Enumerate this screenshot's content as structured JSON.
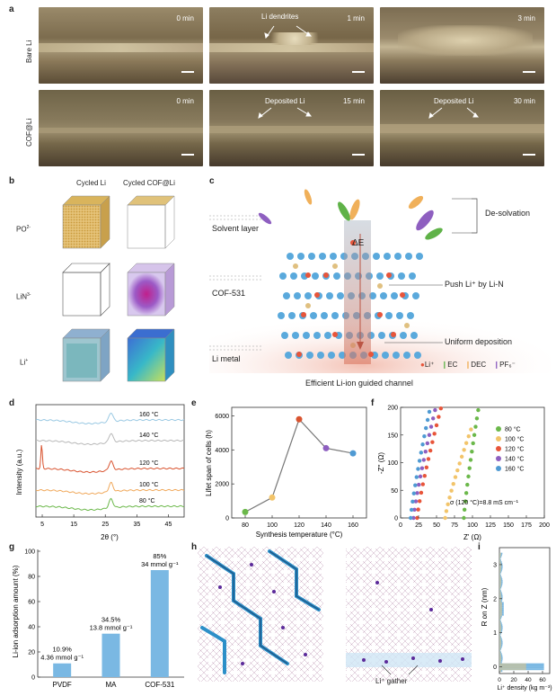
{
  "panels": {
    "a": "a",
    "b": "b",
    "c": "c",
    "d": "d",
    "e": "e",
    "f": "f",
    "g": "g",
    "h": "h",
    "i": "i"
  },
  "a": {
    "row_labels": [
      "Bare Li",
      "COF@Li"
    ],
    "times_top": [
      "0 min",
      "1 min",
      "3 min"
    ],
    "times_bottom": [
      "0 min",
      "15 min",
      "30 min"
    ],
    "annot_top_mid": "Li dendrites",
    "annot_bottom_mid": "Deposited Li",
    "annot_bottom_right": "Deposited Li"
  },
  "b": {
    "columns": [
      "Cycled Li",
      "Cycled COF@Li"
    ],
    "rows": [
      "PO",
      "LiN",
      "Li"
    ],
    "row_sups": [
      "2-",
      "3-",
      "+"
    ]
  },
  "c": {
    "labels": {
      "desolvation": "De-solvation",
      "solvent_layer": "Solvent layer",
      "delta_e": "ΔE",
      "push": "Push Li⁺ by Li-N",
      "cof": "COF-531",
      "uniform": "Uniform deposition",
      "li_metal": "Li metal",
      "caption": "Efficient Li-ion guided channel"
    },
    "legend": [
      "Li⁺",
      "EC",
      "DEC",
      "PF₆⁻"
    ],
    "legend_colors": [
      "#e8553a",
      "#5fb248",
      "#f0b05a",
      "#8e5fc0"
    ]
  },
  "chart_data": [
    {
      "id": "d",
      "type": "line",
      "xlabel": "2θ (°)",
      "ylabel": "Intensity (a.u.)",
      "xlim": [
        3,
        50
      ],
      "xticks": [
        5,
        15,
        25,
        35,
        45
      ],
      "series": [
        {
          "name": "160 °C",
          "color": "#9ac9e3"
        },
        {
          "name": "140 °C",
          "color": "#b8b8b8"
        },
        {
          "name": "120 °C",
          "color": "#d9532f"
        },
        {
          "name": "100 °C",
          "color": "#f0a85a"
        },
        {
          "name": "80 °C",
          "color": "#6bb84a"
        }
      ]
    },
    {
      "id": "e",
      "type": "line",
      "xlabel": "Synthesis temperature (°C)",
      "ylabel": "Lifet span of cells (h)",
      "x": [
        80,
        100,
        120,
        140,
        160
      ],
      "y": [
        350,
        1200,
        5800,
        4100,
        3800
      ],
      "xlim": [
        70,
        170
      ],
      "ylim": [
        0,
        6500
      ],
      "xticks": [
        80,
        100,
        120,
        140,
        160
      ],
      "yticks": [
        0,
        2000,
        4000,
        6000
      ],
      "point_colors": [
        "#6bb84a",
        "#f2c46a",
        "#d9532f",
        "#8e5fc0",
        "#4f9ad3"
      ]
    },
    {
      "id": "f",
      "type": "scatter",
      "xlabel": "Z' (Ω)",
      "ylabel": "-Z'' (Ω)",
      "xlim": [
        0,
        200
      ],
      "ylim": [
        0,
        200
      ],
      "xticks": [
        0,
        25,
        50,
        75,
        100,
        125,
        150,
        175,
        200
      ],
      "yticks": [
        0,
        50,
        100,
        150,
        200
      ],
      "annotation": "σ (120 °C)=8.8 mS cm⁻¹",
      "series": [
        {
          "name": "80 °C",
          "color": "#6bb84a",
          "x0": 88,
          "x1": 108,
          "ymax": 195
        },
        {
          "name": "100 °C",
          "color": "#f2c46a",
          "x0": 62,
          "x1": 98,
          "ymax": 160
        },
        {
          "name": "120 °C",
          "color": "#e8553a",
          "x0": 23,
          "x1": 56,
          "ymax": 198
        },
        {
          "name": "140 °C",
          "color": "#8e5fc0",
          "x0": 18,
          "x1": 48,
          "ymax": 195
        },
        {
          "name": "160 °C",
          "color": "#4f9ad3",
          "x0": 14,
          "x1": 40,
          "ymax": 192
        }
      ]
    },
    {
      "id": "g",
      "type": "bar",
      "ylabel": "Li-ion adsorption amount (%)",
      "categories": [
        "PVDF",
        "MA",
        "COF-531"
      ],
      "values": [
        10.9,
        34.5,
        85
      ],
      "labels_pct": [
        "10.9%",
        "34.5%",
        "85%"
      ],
      "labels_mmol": [
        "4.36 mmol g⁻¹",
        "13.8 mmol g⁻¹",
        "34 mmol g⁻¹"
      ],
      "ylim": [
        0,
        100
      ],
      "yticks": [
        0,
        20,
        40,
        60,
        80,
        100
      ]
    },
    {
      "id": "i",
      "type": "bar",
      "xlabel": "Li⁺ density (kg m⁻³)",
      "ylabel": "R on Z (nm)",
      "xticks": [
        0,
        20,
        40,
        60
      ],
      "yticks": [
        0,
        1,
        2,
        3
      ],
      "xlim": [
        0,
        70
      ],
      "ylim": [
        -0.2,
        3.5
      ]
    }
  ],
  "h": {
    "annot": "Li⁺ gather"
  }
}
